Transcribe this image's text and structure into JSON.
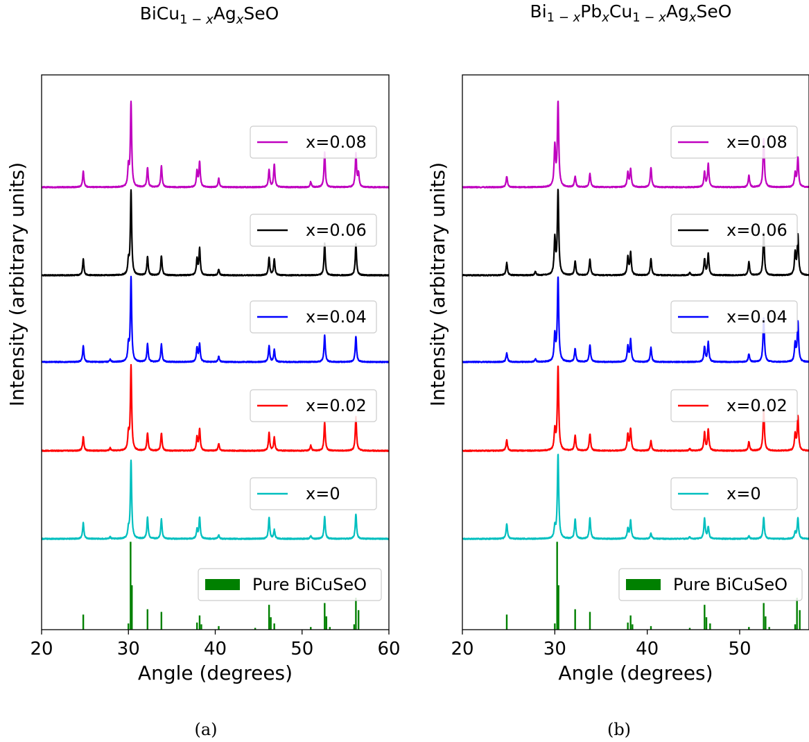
{
  "chart_data": [
    {
      "type": "line",
      "title_parts": [
        {
          "text": "BiCu"
        },
        {
          "text": "1 − ",
          "sub": true
        },
        {
          "text": "x",
          "sub": true,
          "italic": true
        },
        {
          "text": "Ag"
        },
        {
          "text": "x",
          "sub": true,
          "italic": true
        },
        {
          "text": "SeO"
        }
      ],
      "caption": "(a)",
      "xlabel": "Angle (degrees)",
      "ylabel": "Intensity (arbitrary units)",
      "xlim": [
        20,
        60
      ],
      "xticks": [
        20,
        30,
        40,
        50,
        60
      ],
      "yticks_shown": false,
      "legend_position": "right of each stacked trace",
      "series": [
        {
          "name": "x=0.08",
          "color": "#bf00bf",
          "baseline": 5,
          "peaks": [
            [
              24.8,
              0.18
            ],
            [
              30.0,
              0.22
            ],
            [
              30.3,
              0.95
            ],
            [
              32.2,
              0.22
            ],
            [
              33.8,
              0.24
            ],
            [
              37.9,
              0.18
            ],
            [
              38.2,
              0.28
            ],
            [
              40.4,
              0.1
            ],
            [
              46.2,
              0.2
            ],
            [
              46.8,
              0.26
            ],
            [
              51.0,
              0.06
            ],
            [
              52.6,
              0.4
            ],
            [
              56.2,
              0.38
            ],
            [
              56.5,
              0.15
            ]
          ]
        },
        {
          "name": "x=0.06",
          "color": "#000000",
          "baseline": 4,
          "peaks": [
            [
              24.8,
              0.18
            ],
            [
              30.0,
              0.15
            ],
            [
              30.3,
              0.95
            ],
            [
              32.2,
              0.21
            ],
            [
              33.8,
              0.22
            ],
            [
              37.9,
              0.18
            ],
            [
              38.2,
              0.3
            ],
            [
              40.4,
              0.07
            ],
            [
              46.2,
              0.2
            ],
            [
              46.8,
              0.18
            ],
            [
              52.6,
              0.36
            ],
            [
              56.2,
              0.35
            ]
          ]
        },
        {
          "name": "x=0.04",
          "color": "#0000ff",
          "baseline": 3,
          "peaks": [
            [
              24.8,
              0.18
            ],
            [
              27.9,
              0.03
            ],
            [
              30.0,
              0.18
            ],
            [
              30.3,
              0.95
            ],
            [
              32.2,
              0.2
            ],
            [
              33.8,
              0.2
            ],
            [
              37.9,
              0.16
            ],
            [
              38.2,
              0.2
            ],
            [
              40.4,
              0.06
            ],
            [
              46.2,
              0.18
            ],
            [
              46.8,
              0.14
            ],
            [
              52.6,
              0.3
            ],
            [
              56.2,
              0.29
            ]
          ]
        },
        {
          "name": "x=0.02",
          "color": "#ff0000",
          "baseline": 2,
          "peaks": [
            [
              24.8,
              0.16
            ],
            [
              27.9,
              0.03
            ],
            [
              30.0,
              0.18
            ],
            [
              30.3,
              0.95
            ],
            [
              32.2,
              0.2
            ],
            [
              33.8,
              0.2
            ],
            [
              37.9,
              0.15
            ],
            [
              38.2,
              0.24
            ],
            [
              40.4,
              0.08
            ],
            [
              46.2,
              0.2
            ],
            [
              46.8,
              0.15
            ],
            [
              51.0,
              0.06
            ],
            [
              52.6,
              0.32
            ],
            [
              56.2,
              0.38
            ]
          ]
        },
        {
          "name": "x=0",
          "color": "#00bfbf",
          "baseline": 1,
          "peaks": [
            [
              24.8,
              0.18
            ],
            [
              27.9,
              0.02
            ],
            [
              30.0,
              0.1
            ],
            [
              30.3,
              0.88
            ],
            [
              32.2,
              0.24
            ],
            [
              33.8,
              0.22
            ],
            [
              37.9,
              0.1
            ],
            [
              38.2,
              0.24
            ],
            [
              40.4,
              0.04
            ],
            [
              46.2,
              0.24
            ],
            [
              46.8,
              0.1
            ],
            [
              51.0,
              0.03
            ],
            [
              52.6,
              0.25
            ],
            [
              56.2,
              0.28
            ]
          ]
        }
      ],
      "reference": {
        "name": "Pure BiCuSeO",
        "color": "#008000",
        "baseline": 0,
        "sticks": [
          [
            24.8,
            0.17
          ],
          [
            30.0,
            0.07
          ],
          [
            30.25,
            0.99
          ],
          [
            30.4,
            0.5
          ],
          [
            32.2,
            0.23
          ],
          [
            33.8,
            0.2
          ],
          [
            37.9,
            0.08
          ],
          [
            38.2,
            0.16
          ],
          [
            38.4,
            0.06
          ],
          [
            40.4,
            0.04
          ],
          [
            44.6,
            0.02
          ],
          [
            46.2,
            0.28
          ],
          [
            46.4,
            0.14
          ],
          [
            46.8,
            0.07
          ],
          [
            51.0,
            0.03
          ],
          [
            52.6,
            0.3
          ],
          [
            52.8,
            0.15
          ],
          [
            53.2,
            0.03
          ],
          [
            56.0,
            0.06
          ],
          [
            56.2,
            0.36
          ],
          [
            56.5,
            0.22
          ]
        ]
      }
    },
    {
      "type": "line",
      "title_parts": [
        {
          "text": "Bi"
        },
        {
          "text": "1 − ",
          "sub": true
        },
        {
          "text": "x",
          "sub": true,
          "italic": true
        },
        {
          "text": "Pb"
        },
        {
          "text": "x",
          "sub": true,
          "italic": true
        },
        {
          "text": "Cu"
        },
        {
          "text": "1 − ",
          "sub": true
        },
        {
          "text": "x",
          "sub": true,
          "italic": true
        },
        {
          "text": "Ag"
        },
        {
          "text": "x",
          "sub": true,
          "italic": true
        },
        {
          "text": "SeO"
        }
      ],
      "caption": "(b)",
      "xlabel": "Angle (degrees)",
      "ylabel": "Intensity (arbitrary units)",
      "xlim": [
        20,
        57.5
      ],
      "xticks": [
        20,
        30,
        40,
        50
      ],
      "yticks_shown": false,
      "legend_position": "right of each stacked trace",
      "series": [
        {
          "name": "x=0.08",
          "color": "#bf00bf",
          "baseline": 5,
          "peaks": [
            [
              24.8,
              0.12
            ],
            [
              30.0,
              0.45
            ],
            [
              30.35,
              0.95
            ],
            [
              32.2,
              0.12
            ],
            [
              33.8,
              0.15
            ],
            [
              37.9,
              0.16
            ],
            [
              38.2,
              0.2
            ],
            [
              40.4,
              0.22
            ],
            [
              46.2,
              0.17
            ],
            [
              46.6,
              0.26
            ],
            [
              51.0,
              0.13
            ],
            [
              52.6,
              0.55
            ],
            [
              56.0,
              0.15
            ],
            [
              56.3,
              0.33
            ]
          ]
        },
        {
          "name": "x=0.06",
          "color": "#000000",
          "baseline": 4,
          "peaks": [
            [
              24.8,
              0.14
            ],
            [
              27.9,
              0.04
            ],
            [
              30.0,
              0.4
            ],
            [
              30.35,
              0.95
            ],
            [
              32.2,
              0.16
            ],
            [
              33.8,
              0.18
            ],
            [
              37.9,
              0.2
            ],
            [
              38.2,
              0.25
            ],
            [
              40.4,
              0.19
            ],
            [
              44.6,
              0.03
            ],
            [
              46.2,
              0.18
            ],
            [
              46.6,
              0.24
            ],
            [
              51.0,
              0.15
            ],
            [
              52.6,
              0.48
            ],
            [
              56.0,
              0.25
            ],
            [
              56.3,
              0.45
            ]
          ]
        },
        {
          "name": "x=0.04",
          "color": "#0000ff",
          "baseline": 3,
          "peaks": [
            [
              24.8,
              0.1
            ],
            [
              27.9,
              0.03
            ],
            [
              30.0,
              0.3
            ],
            [
              30.35,
              0.95
            ],
            [
              32.2,
              0.15
            ],
            [
              33.8,
              0.19
            ],
            [
              37.9,
              0.17
            ],
            [
              38.2,
              0.25
            ],
            [
              40.4,
              0.16
            ],
            [
              46.2,
              0.17
            ],
            [
              46.6,
              0.22
            ],
            [
              51.0,
              0.09
            ],
            [
              52.6,
              0.5
            ],
            [
              56.0,
              0.2
            ],
            [
              56.3,
              0.45
            ]
          ]
        },
        {
          "name": "x=0.02",
          "color": "#ff0000",
          "baseline": 2,
          "peaks": [
            [
              24.8,
              0.12
            ],
            [
              30.0,
              0.22
            ],
            [
              30.35,
              0.95
            ],
            [
              32.2,
              0.17
            ],
            [
              33.8,
              0.19
            ],
            [
              37.9,
              0.18
            ],
            [
              38.2,
              0.24
            ],
            [
              40.4,
              0.11
            ],
            [
              44.6,
              0.02
            ],
            [
              46.2,
              0.2
            ],
            [
              46.6,
              0.24
            ],
            [
              51.0,
              0.1
            ],
            [
              52.6,
              0.47
            ],
            [
              56.0,
              0.18
            ],
            [
              56.3,
              0.38
            ]
          ]
        },
        {
          "name": "x=0",
          "color": "#00bfbf",
          "baseline": 1,
          "peaks": [
            [
              24.8,
              0.17
            ],
            [
              30.0,
              0.12
            ],
            [
              30.35,
              0.95
            ],
            [
              32.2,
              0.22
            ],
            [
              33.8,
              0.23
            ],
            [
              37.9,
              0.11
            ],
            [
              38.2,
              0.2
            ],
            [
              40.4,
              0.06
            ],
            [
              44.6,
              0.02
            ],
            [
              46.2,
              0.23
            ],
            [
              46.6,
              0.13
            ],
            [
              51.0,
              0.03
            ],
            [
              52.6,
              0.24
            ],
            [
              56.0,
              0.07
            ],
            [
              56.3,
              0.23
            ]
          ]
        }
      ],
      "reference": {
        "name": "Pure BiCuSeO",
        "color": "#008000",
        "baseline": 0,
        "sticks": [
          [
            24.8,
            0.17
          ],
          [
            30.0,
            0.07
          ],
          [
            30.25,
            0.99
          ],
          [
            30.4,
            0.5
          ],
          [
            32.2,
            0.23
          ],
          [
            33.8,
            0.2
          ],
          [
            37.9,
            0.08
          ],
          [
            38.2,
            0.16
          ],
          [
            38.4,
            0.06
          ],
          [
            40.4,
            0.04
          ],
          [
            44.6,
            0.02
          ],
          [
            46.2,
            0.28
          ],
          [
            46.4,
            0.14
          ],
          [
            46.8,
            0.07
          ],
          [
            51.0,
            0.03
          ],
          [
            52.6,
            0.3
          ],
          [
            52.8,
            0.15
          ],
          [
            53.2,
            0.03
          ],
          [
            56.0,
            0.06
          ],
          [
            56.2,
            0.36
          ],
          [
            56.5,
            0.22
          ]
        ]
      }
    }
  ]
}
